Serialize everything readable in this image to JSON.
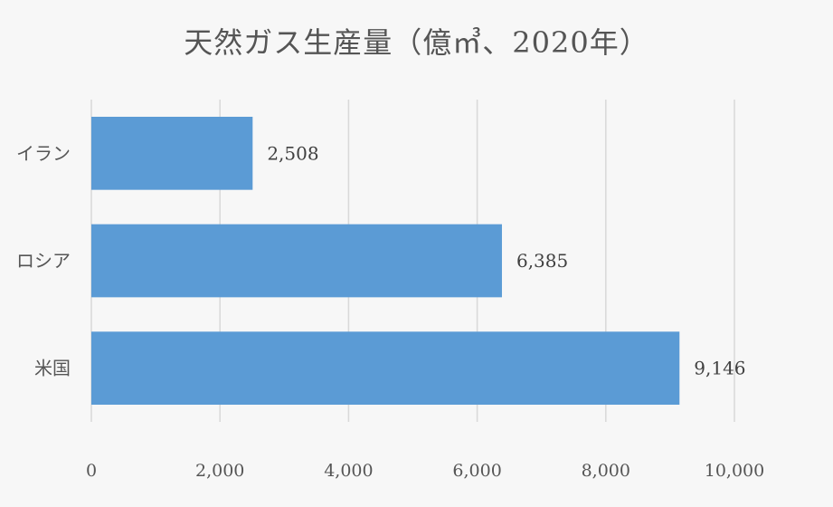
{
  "chart_data": {
    "type": "bar",
    "orientation": "horizontal",
    "title": "天然ガス生産量（億㎥、2020年）",
    "categories": [
      "イラン",
      "ロシア",
      "米国"
    ],
    "values": [
      2508,
      6385,
      9146
    ],
    "value_labels": [
      "2,508",
      "6,385",
      "9,146"
    ],
    "xlim": [
      0,
      10000
    ],
    "x_ticks": [
      0,
      2000,
      4000,
      6000,
      8000,
      10000
    ],
    "x_tick_labels": [
      "0",
      "2,000",
      "4,000",
      "6,000",
      "8,000",
      "10,000"
    ],
    "grid": true,
    "bar_color": "#5b9bd5",
    "grid_color": "#d9d9d9"
  }
}
